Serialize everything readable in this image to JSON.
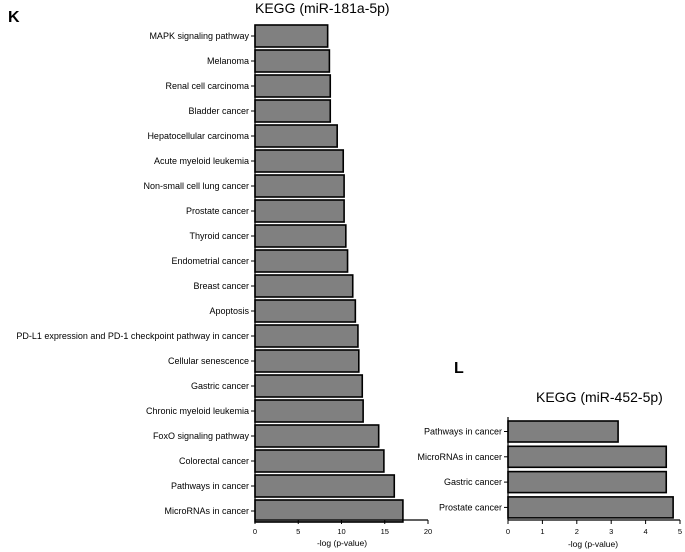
{
  "chart_data": [
    {
      "type": "bar",
      "orientation": "horizontal",
      "panel_label": "K",
      "title": "KEGG (miR-181a-5p)",
      "xlabel": "-log (p-value)",
      "ylabel": "",
      "xlim": [
        0,
        20
      ],
      "xticks": [
        0,
        5,
        10,
        15,
        20
      ],
      "grid": false,
      "categories": [
        "MAPK signaling pathway",
        "Melanoma",
        "Renal cell carcinoma",
        "Bladder cancer",
        "Hepatocellular carcinoma",
        "Acute myeloid leukemia",
        "Non-small cell lung cancer",
        "Prostate cancer",
        "Thyroid cancer",
        "Endometrial cancer",
        "Breast cancer",
        "Apoptosis",
        "PD-L1 expression and PD-1 checkpoint pathway in cancer",
        "Cellular senescence",
        "Gastric cancer",
        "Chronic myeloid leukemia",
        "FoxO signaling pathway",
        "Colorectal cancer",
        "Pathways in cancer",
        "MicroRNAs in cancer"
      ],
      "values": [
        8.4,
        8.6,
        8.7,
        8.7,
        9.5,
        10.2,
        10.3,
        10.3,
        10.5,
        10.7,
        11.3,
        11.6,
        11.9,
        12.0,
        12.4,
        12.5,
        14.3,
        14.9,
        16.1,
        17.1
      ],
      "bar_color": "#808080"
    },
    {
      "type": "bar",
      "orientation": "horizontal",
      "panel_label": "L",
      "title": "KEGG (miR-452-5p)",
      "xlabel": "-log (p-value)",
      "ylabel": "",
      "xlim": [
        0,
        5
      ],
      "xticks": [
        0,
        1,
        2,
        3,
        4,
        5
      ],
      "grid": false,
      "categories": [
        "Pathways in cancer",
        "MicroRNAs in cancer",
        "Gastric cancer",
        "Prostate cancer"
      ],
      "values": [
        3.2,
        4.6,
        4.6,
        4.8
      ],
      "bar_color": "#808080"
    }
  ]
}
